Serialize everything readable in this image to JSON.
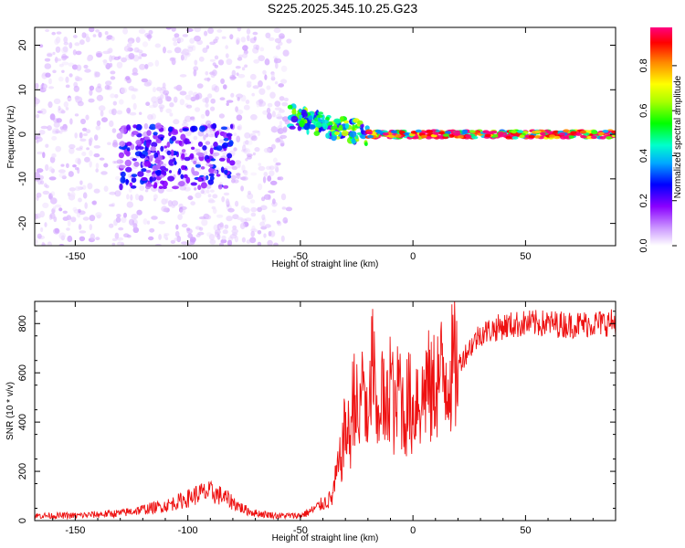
{
  "title": "S225.2025.345.10.25.G23",
  "colors": {
    "snr_line": "#ee1111",
    "frame": "#000000"
  },
  "chart_data": [
    {
      "type": "heatmap",
      "name": "spectrogram",
      "xlabel": "Height of straight line (km)",
      "ylabel": "Frequency (Hz)",
      "xlim": [
        -168,
        90
      ],
      "ylim": [
        -25,
        24
      ],
      "xticks": [
        -150,
        -100,
        -50,
        0,
        50
      ],
      "yticks": [
        -20,
        -10,
        0,
        10,
        20
      ],
      "colorbar": {
        "label": "Normalized spectral amplitude",
        "range": [
          0,
          0.97
        ],
        "ticks": [
          0.0,
          0.2,
          0.4,
          0.6,
          0.8
        ],
        "colormap": [
          "#ffffff",
          "#8a00ff",
          "#0000ff",
          "#00ffff",
          "#00ff00",
          "#ffff00",
          "#ff8800",
          "#ff0000",
          "#ff0080"
        ]
      },
      "features": [
        {
          "description": "scattered noise",
          "x_range": [
            -168,
            -55
          ],
          "freq_range": [
            -25,
            24
          ],
          "amplitude": 0.05
        },
        {
          "description": "dispersed signal",
          "x_range": [
            -130,
            -80
          ],
          "freq_range": [
            -12,
            2
          ],
          "amplitude": 0.2
        },
        {
          "description": "signal transition",
          "x_range": [
            -55,
            -20
          ],
          "freq_range": [
            -2,
            6
          ],
          "amplitude": 0.45
        },
        {
          "description": "stable carrier",
          "x_range": [
            -20,
            90
          ],
          "freq_range": [
            -2,
            2
          ],
          "amplitude": 0.85
        }
      ]
    },
    {
      "type": "line",
      "name": "snr",
      "xlabel": "Height of straight line (km)",
      "ylabel": "SNR (10 * v/v)",
      "xlim": [
        -168,
        90
      ],
      "ylim": [
        0,
        890
      ],
      "xticks": [
        -150,
        -100,
        -50,
        0,
        50
      ],
      "yticks": [
        0,
        200,
        400,
        600,
        800
      ],
      "series": [
        {
          "name": "SNR",
          "x": [
            -168,
            -150,
            -130,
            -120,
            -110,
            -100,
            -95,
            -90,
            -85,
            -80,
            -75,
            -70,
            -60,
            -50,
            -45,
            -40,
            -36,
            -34,
            -32,
            -30,
            -28,
            -26,
            -24,
            -22,
            -20,
            -18,
            -16,
            -14,
            -12,
            -10,
            -8,
            -6,
            -4,
            -2,
            0,
            2,
            4,
            6,
            8,
            10,
            15,
            20,
            25,
            30,
            40,
            50,
            60,
            70,
            80,
            90
          ],
          "y": [
            20,
            20,
            30,
            45,
            60,
            90,
            110,
            115,
            100,
            75,
            45,
            30,
            20,
            20,
            40,
            70,
            90,
            180,
            250,
            380,
            330,
            560,
            350,
            640,
            300,
            700,
            350,
            560,
            380,
            620,
            400,
            580,
            410,
            500,
            430,
            530,
            470,
            580,
            500,
            570,
            600,
            630,
            700,
            760,
            790,
            800,
            800,
            795,
            800,
            805
          ]
        }
      ]
    }
  ]
}
